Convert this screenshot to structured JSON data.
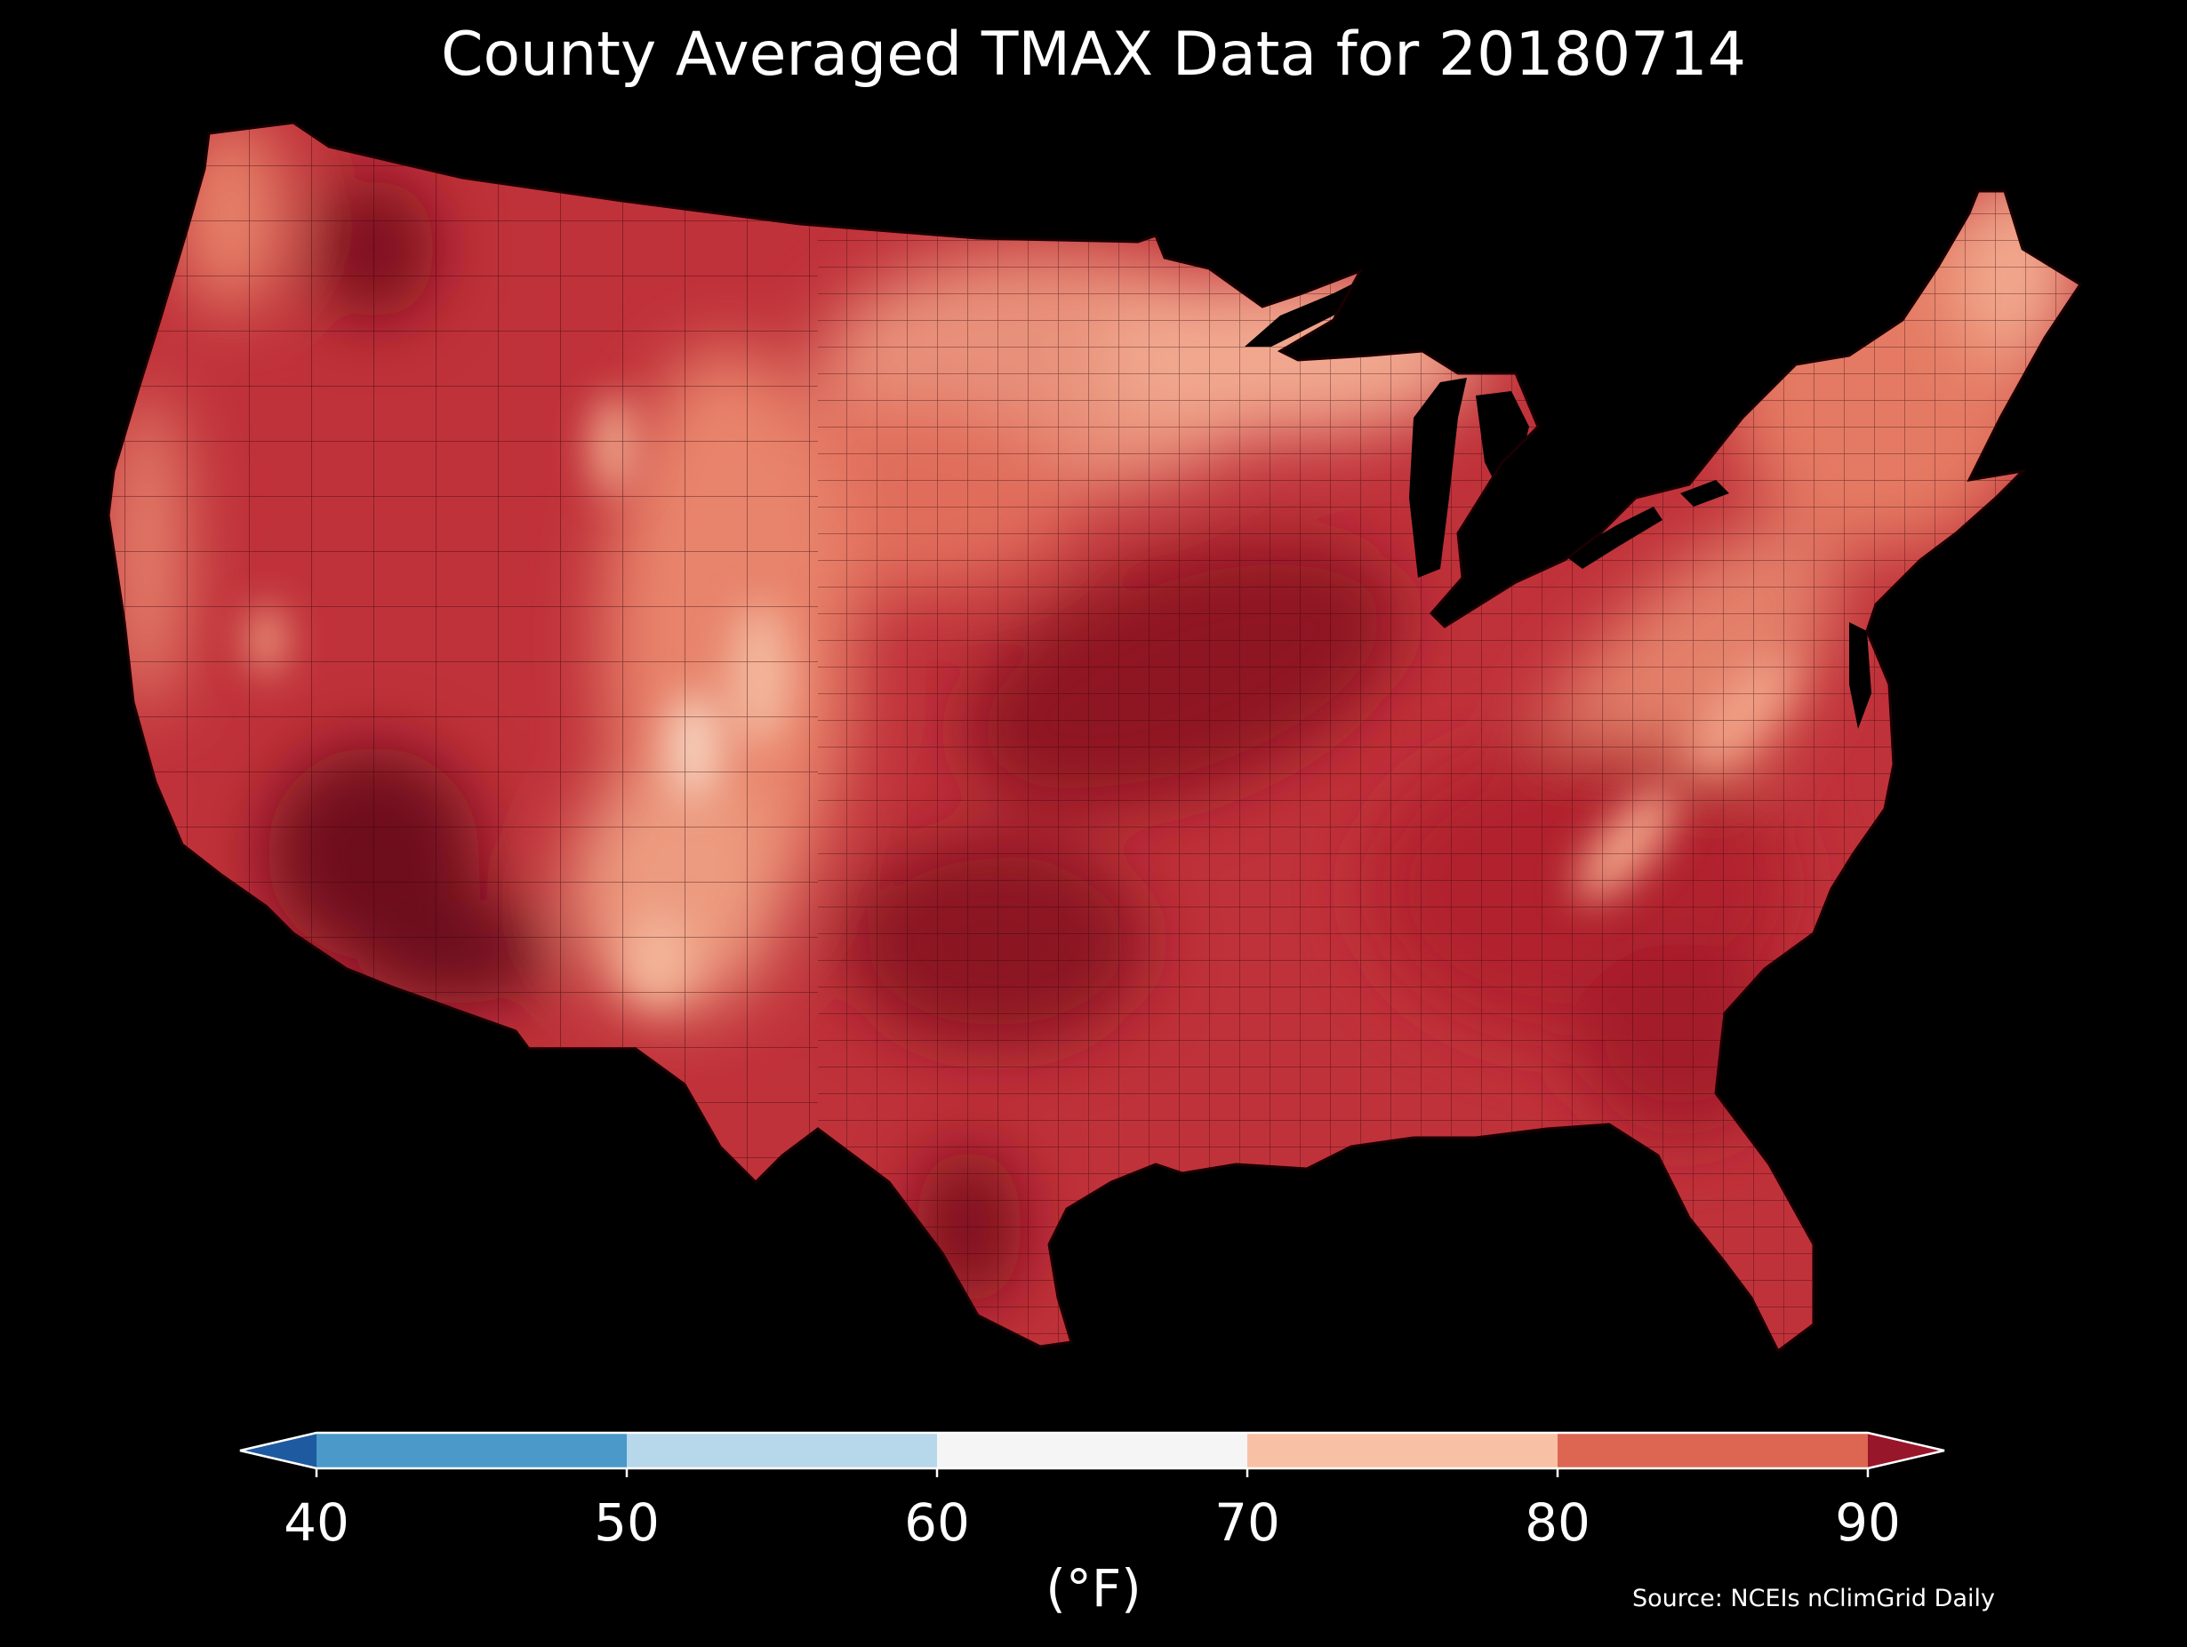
{
  "title": "County Averaged TMAX Data for 20180714",
  "map": {
    "region": "Contiguous United States",
    "background_color": "#000000",
    "border_color": "#222222",
    "predominant_range": "80-90+ °F across the South, Plains, Southwest deserts; 70-80 °F across the northern tier, Rockies and Appalachians"
  },
  "colorbar": {
    "ticks": [
      "40",
      "50",
      "60",
      "70",
      "80",
      "90"
    ],
    "unit_label": "(°F)",
    "extend": "both",
    "under_color": "#1e5aa0",
    "over_color": "#98162a",
    "bins": [
      {
        "min": 40,
        "max": 50,
        "color": "#4a99c9"
      },
      {
        "min": 50,
        "max": 60,
        "color": "#b7d8ea"
      },
      {
        "min": 60,
        "max": 70,
        "color": "#f5f5f5"
      },
      {
        "min": 70,
        "max": 80,
        "color": "#f8c1a5"
      },
      {
        "min": 80,
        "max": 90,
        "color": "#dd6652"
      }
    ]
  },
  "source": "Source: NCEIs nClimGrid Daily"
}
